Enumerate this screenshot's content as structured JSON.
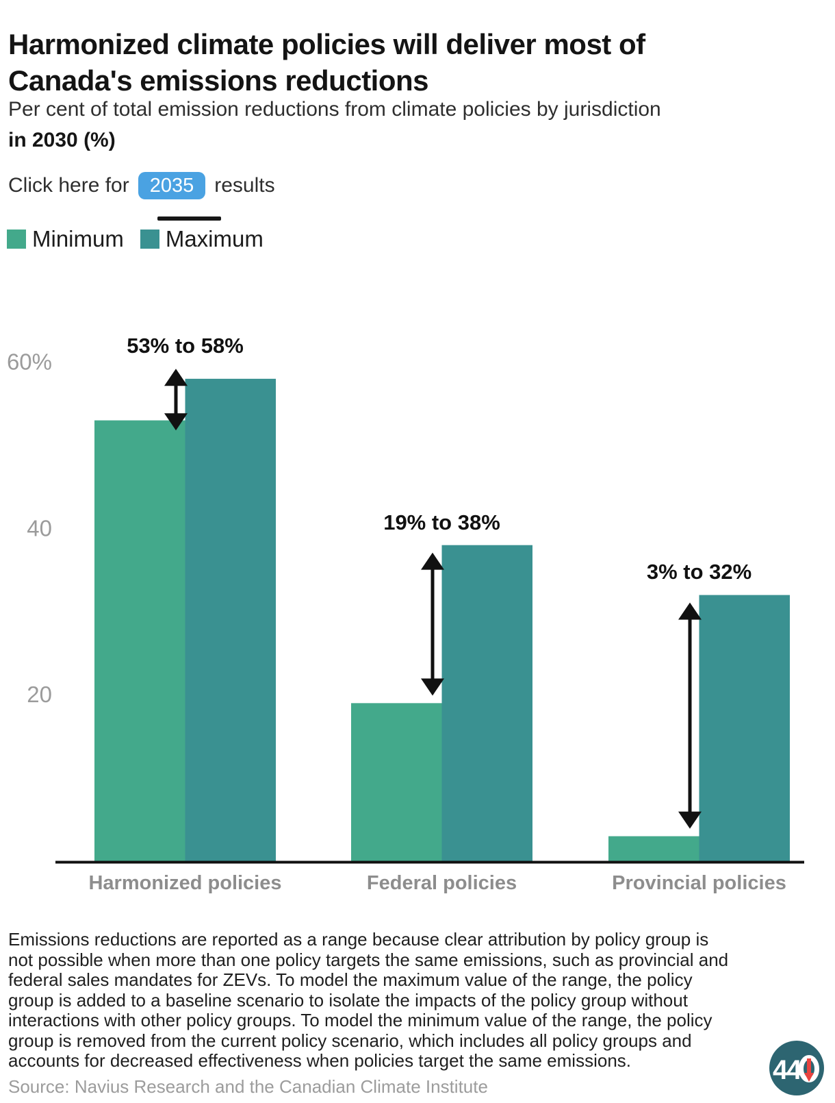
{
  "header": {
    "title": "Harmonized climate policies will deliver most of\nCanada's emissions reductions",
    "subtitle": "Per cent of total emission reductions from climate policies by jurisdiction",
    "subtitle_bold": "in 2030 (%)",
    "toggle": {
      "prefix": "Click here for",
      "year": "2035",
      "suffix": "results",
      "button_color": "#4aa2e2",
      "button_text_color": "#ffffff"
    }
  },
  "legend": {
    "items": [
      {
        "label": "Minimum",
        "color": "#43a98b"
      },
      {
        "label": "Maximum",
        "color": "#3a9191"
      }
    ]
  },
  "chart_data": {
    "type": "bar",
    "title": "Harmonized climate policies will deliver most of Canada's emissions reductions",
    "subtitle": "Per cent of total emission reductions from climate policies by jurisdiction in 2030 (%)",
    "categories": [
      "Harmonized policies",
      "Federal policies",
      "Provincial policies"
    ],
    "series": [
      {
        "name": "Minimum",
        "color": "#43a98b",
        "values": [
          53,
          19,
          3
        ]
      },
      {
        "name": "Maximum",
        "color": "#3a9191",
        "values": [
          58,
          38,
          32
        ]
      }
    ],
    "range_labels": [
      "53% to 58%",
      "19% to 38%",
      "3% to 32%"
    ],
    "yticks": [
      {
        "value": 60,
        "label": "60%"
      },
      {
        "value": 40,
        "label": "40"
      },
      {
        "value": 20,
        "label": "20"
      }
    ],
    "ylim": [
      0,
      68
    ],
    "xlabel": "",
    "ylabel": "",
    "grid": false,
    "legend_position": "top-left",
    "axis_color": "#111111",
    "arrow_color": "#111111"
  },
  "footer": {
    "note": "Emissions reductions are reported as a range because clear attribution by policy group is\nnot possible when more than one policy targets the same emissions, such as provincial and\nfederal sales mandates for ZEVs. To model the maximum value of the range, the policy\ngroup is added to a baseline scenario to isolate the impacts of the policy group without\ninteractions with other policy groups. To model the minimum value of the range, the policy\ngroup is removed from the current policy scenario, which includes all policy groups and\naccounts for decreased effectiveness when policies target the same emissions.",
    "source": "Source: Navius Research and the Canadian Climate Institute"
  },
  "logo": {
    "text": "440",
    "circle_color": "#2d6571",
    "arrow_color": "#e8433f"
  }
}
